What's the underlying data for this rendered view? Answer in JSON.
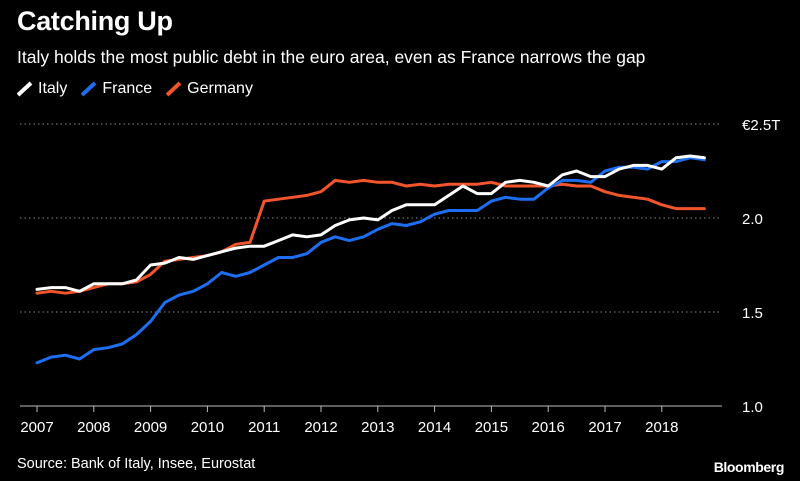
{
  "header": {
    "title": "Catching Up",
    "subtitle": "Italy holds the most public debt in the euro area, even as France narrows the gap"
  },
  "legend": [
    {
      "label": "Italy",
      "color": "#ffffff"
    },
    {
      "label": "France",
      "color": "#1e6ef2"
    },
    {
      "label": "Germany",
      "color": "#f2552c"
    }
  ],
  "footer": {
    "source": "Source: Bank of Italy, Insee, Eurostat",
    "brand": "Bloomberg"
  },
  "chart_data": {
    "type": "line",
    "title": "Catching Up",
    "subtitle": "Italy holds the most public debt in the euro area, even as France narrows the gap",
    "xlabel": "",
    "ylabel": "",
    "x": [
      "2007 Q1",
      "2007 Q2",
      "2007 Q3",
      "2007 Q4",
      "2008 Q1",
      "2008 Q2",
      "2008 Q3",
      "2008 Q4",
      "2009 Q1",
      "2009 Q2",
      "2009 Q3",
      "2009 Q4",
      "2010 Q1",
      "2010 Q2",
      "2010 Q3",
      "2010 Q4",
      "2011 Q1",
      "2011 Q2",
      "2011 Q3",
      "2011 Q4",
      "2012 Q1",
      "2012 Q2",
      "2012 Q3",
      "2012 Q4",
      "2013 Q1",
      "2013 Q2",
      "2013 Q3",
      "2013 Q4",
      "2014 Q1",
      "2014 Q2",
      "2014 Q3",
      "2014 Q4",
      "2015 Q1",
      "2015 Q2",
      "2015 Q3",
      "2015 Q4",
      "2016 Q1",
      "2016 Q2",
      "2016 Q3",
      "2016 Q4",
      "2017 Q1",
      "2017 Q2",
      "2017 Q3",
      "2017 Q4",
      "2018 Q1",
      "2018 Q2",
      "2018 Q3",
      "2018 Q4"
    ],
    "x_ticks": [
      "2007",
      "2008",
      "2009",
      "2010",
      "2011",
      "2012",
      "2013",
      "2014",
      "2015",
      "2016",
      "2017",
      "2018"
    ],
    "y_ticks": [
      "1.0",
      "1.5",
      "2.0",
      "€2.5T"
    ],
    "y_tick_values": [
      1.0,
      1.5,
      2.0,
      2.5
    ],
    "ylim": [
      1.0,
      2.5
    ],
    "grid": "horizontal dotted",
    "legend_position": "top-left",
    "series": [
      {
        "name": "Italy",
        "color": "#ffffff",
        "values": [
          1.62,
          1.63,
          1.63,
          1.61,
          1.65,
          1.65,
          1.65,
          1.67,
          1.75,
          1.76,
          1.79,
          1.78,
          1.8,
          1.82,
          1.84,
          1.85,
          1.85,
          1.88,
          1.91,
          1.9,
          1.91,
          1.96,
          1.99,
          2.0,
          1.99,
          2.04,
          2.07,
          2.07,
          2.07,
          2.12,
          2.17,
          2.13,
          2.13,
          2.19,
          2.2,
          2.19,
          2.17,
          2.23,
          2.25,
          2.22,
          2.22,
          2.26,
          2.28,
          2.28,
          2.26,
          2.32,
          2.33,
          2.32
        ]
      },
      {
        "name": "France",
        "color": "#1e6ef2",
        "values": [
          1.23,
          1.26,
          1.27,
          1.25,
          1.3,
          1.31,
          1.33,
          1.38,
          1.45,
          1.55,
          1.59,
          1.61,
          1.65,
          1.71,
          1.69,
          1.71,
          1.75,
          1.79,
          1.79,
          1.81,
          1.87,
          1.9,
          1.88,
          1.9,
          1.94,
          1.97,
          1.96,
          1.98,
          2.02,
          2.04,
          2.04,
          2.04,
          2.09,
          2.11,
          2.1,
          2.1,
          2.16,
          2.2,
          2.2,
          2.19,
          2.25,
          2.27,
          2.27,
          2.26,
          2.3,
          2.3,
          2.32,
          2.31
        ]
      },
      {
        "name": "Germany",
        "color": "#f2552c",
        "values": [
          1.6,
          1.61,
          1.6,
          1.61,
          1.63,
          1.65,
          1.65,
          1.66,
          1.7,
          1.77,
          1.78,
          1.79,
          1.8,
          1.82,
          1.86,
          1.87,
          2.09,
          2.1,
          2.11,
          2.12,
          2.14,
          2.2,
          2.19,
          2.2,
          2.19,
          2.19,
          2.17,
          2.18,
          2.17,
          2.18,
          2.18,
          2.18,
          2.19,
          2.17,
          2.17,
          2.17,
          2.17,
          2.18,
          2.17,
          2.17,
          2.14,
          2.12,
          2.11,
          2.1,
          2.07,
          2.05,
          2.05,
          2.05
        ]
      }
    ]
  }
}
